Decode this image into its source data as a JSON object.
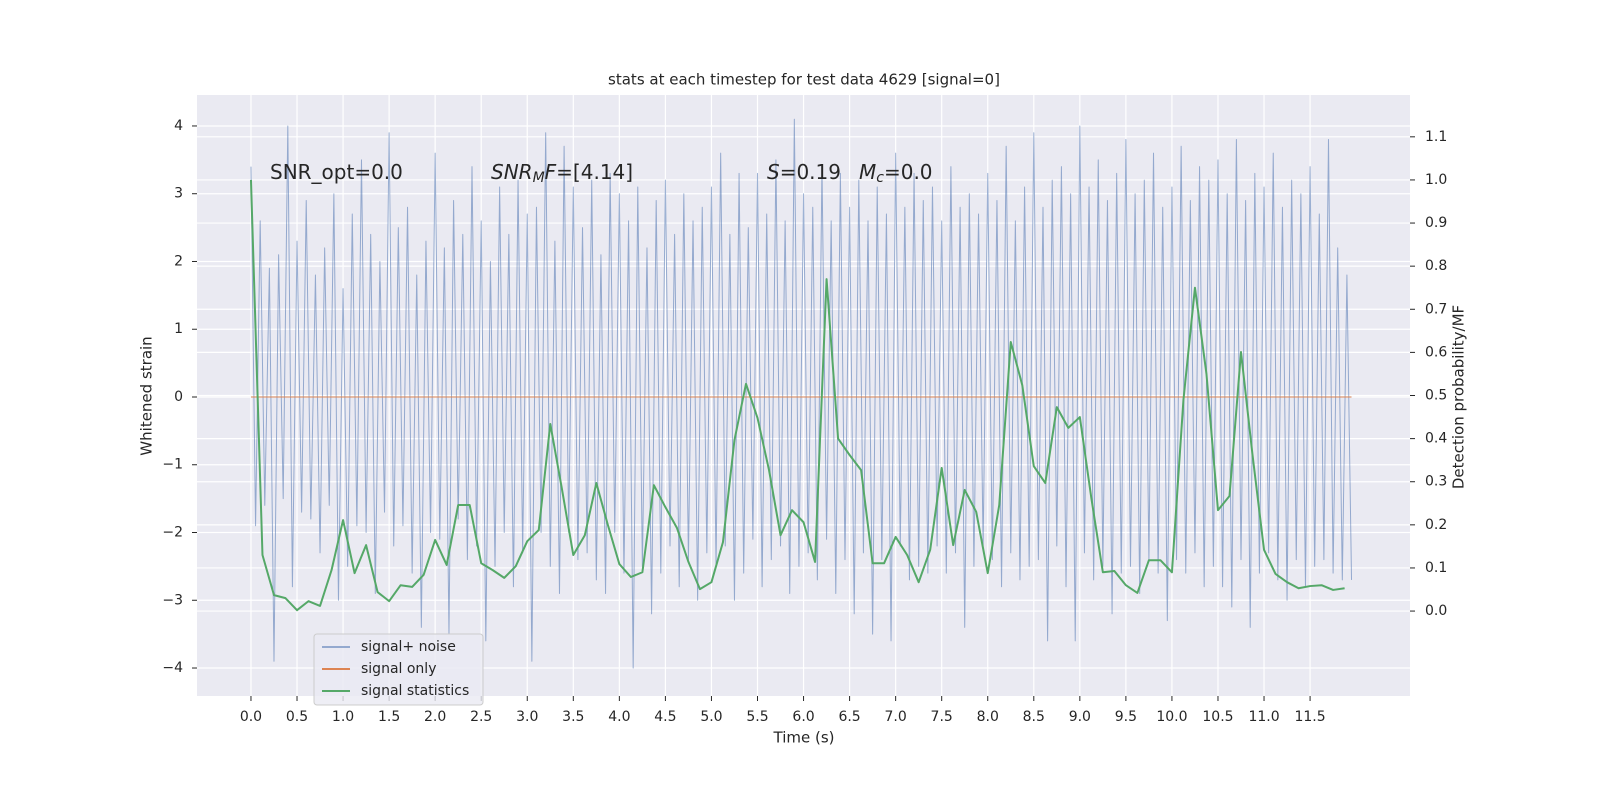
{
  "chart_data": {
    "type": "line",
    "title": "stats at each timestep for test data 4629 [signal=0]",
    "xlabel": "Time (s)",
    "ylabel": "Whitened strain",
    "y2label": "Detection probability/MF",
    "xlim": [
      -0.586,
      12.585
    ],
    "ylim": [
      -4.413,
      4.457
    ],
    "y2lim": [
      -0.197,
      1.197
    ],
    "xticks": [
      {
        "value": 0,
        "label": "0.0"
      },
      {
        "value": 0.5,
        "label": "0.5"
      },
      {
        "value": 1,
        "label": "1.0"
      },
      {
        "value": 1.5,
        "label": "1.5"
      },
      {
        "value": 2,
        "label": "2.0"
      },
      {
        "value": 2.5,
        "label": "2.5"
      },
      {
        "value": 3,
        "label": "3.0"
      },
      {
        "value": 3.5,
        "label": "3.5"
      },
      {
        "value": 4,
        "label": "4.0"
      },
      {
        "value": 4.5,
        "label": "4.5"
      },
      {
        "value": 5,
        "label": "5.0"
      },
      {
        "value": 5.5,
        "label": "5.5"
      },
      {
        "value": 6,
        "label": "6.0"
      },
      {
        "value": 6.5,
        "label": "6.5"
      },
      {
        "value": 7,
        "label": "7.0"
      },
      {
        "value": 7.5,
        "label": "7.5"
      },
      {
        "value": 8,
        "label": "8.0"
      },
      {
        "value": 8.5,
        "label": "8.5"
      },
      {
        "value": 9,
        "label": "9.0"
      },
      {
        "value": 9.5,
        "label": "9.5"
      },
      {
        "value": 10,
        "label": "10.0"
      },
      {
        "value": 10.5,
        "label": "10.5"
      },
      {
        "value": 11,
        "label": "11.0"
      },
      {
        "value": 11.5,
        "label": "11.5"
      }
    ],
    "yticks": [
      {
        "value": -4,
        "label": "−4"
      },
      {
        "value": -3,
        "label": "−3"
      },
      {
        "value": -2,
        "label": "−2"
      },
      {
        "value": -1,
        "label": "−1"
      },
      0,
      1,
      2,
      3,
      4
    ],
    "y2ticks": [
      {
        "value": 0,
        "label": "0.0"
      },
      {
        "value": 0.1,
        "label": "0.1"
      },
      {
        "value": 0.2,
        "label": "0.2"
      },
      {
        "value": 0.3,
        "label": "0.3"
      },
      {
        "value": 0.4,
        "label": "0.4"
      },
      {
        "value": 0.5,
        "label": "0.5"
      },
      {
        "value": 0.6,
        "label": "0.6"
      },
      {
        "value": 0.7,
        "label": "0.7"
      },
      {
        "value": 0.8,
        "label": "0.8"
      },
      {
        "value": 0.9,
        "label": "0.9"
      },
      {
        "value": 1,
        "label": "1.0"
      },
      {
        "value": 1.1,
        "label": "1.1"
      }
    ],
    "grid": true,
    "legend": "lower left",
    "annotations": [
      {
        "parts": [
          {
            "text": "SNR_opt=0.0"
          }
        ]
      },
      {
        "parts": [
          {
            "text": "SNR",
            "italic": true
          },
          {
            "text": "M",
            "italic": true,
            "sub": true
          },
          {
            "text": "F",
            "italic": true
          },
          {
            "text": "=[4.14]"
          }
        ]
      },
      {
        "parts": [
          {
            "text": "S",
            "italic": true
          },
          {
            "text": "=0.19"
          }
        ]
      },
      {
        "parts": [
          {
            "text": "M",
            "italic": true
          },
          {
            "text": "c",
            "italic": true,
            "sub": true
          },
          {
            "text": "=0.0"
          }
        ]
      }
    ],
    "series": [
      {
        "name": "signal+ noise",
        "color": "#4c72b0",
        "opacity": 0.55,
        "x": [
          0,
          0.05,
          0.1,
          0.15,
          0.2,
          0.25,
          0.3,
          0.35,
          0.4,
          0.45,
          0.5,
          0.55,
          0.6,
          0.65,
          0.7,
          0.75,
          0.8,
          0.85,
          0.9,
          0.95,
          1,
          1.05,
          1.1,
          1.15,
          1.2,
          1.25,
          1.3,
          1.35,
          1.4,
          1.45,
          1.5,
          1.55,
          1.6,
          1.65,
          1.7,
          1.75,
          1.8,
          1.85,
          1.9,
          1.95,
          2,
          2.05,
          2.1,
          2.15,
          2.2,
          2.25,
          2.3,
          2.35,
          2.4,
          2.45,
          2.5,
          2.55,
          2.6,
          2.65,
          2.7,
          2.75,
          2.8,
          2.85,
          2.9,
          2.95,
          3,
          3.05,
          3.1,
          3.15,
          3.2,
          3.25,
          3.3,
          3.35,
          3.4,
          3.45,
          3.5,
          3.55,
          3.6,
          3.65,
          3.7,
          3.75,
          3.8,
          3.85,
          3.9,
          3.95,
          4,
          4.05,
          4.1,
          4.15,
          4.2,
          4.25,
          4.3,
          4.35,
          4.4,
          4.45,
          4.5,
          4.55,
          4.6,
          4.65,
          4.7,
          4.75,
          4.8,
          4.85,
          4.9,
          4.95,
          5,
          5.05,
          5.1,
          5.15,
          5.2,
          5.25,
          5.3,
          5.35,
          5.4,
          5.45,
          5.5,
          5.55,
          5.6,
          5.65,
          5.7,
          5.75,
          5.8,
          5.85,
          5.9,
          5.95,
          6,
          6.05,
          6.1,
          6.15,
          6.2,
          6.25,
          6.3,
          6.35,
          6.4,
          6.45,
          6.5,
          6.55,
          6.6,
          6.65,
          6.7,
          6.75,
          6.8,
          6.85,
          6.9,
          6.95,
          7,
          7.05,
          7.1,
          7.15,
          7.2,
          7.25,
          7.3,
          7.35,
          7.4,
          7.45,
          7.5,
          7.55,
          7.6,
          7.65,
          7.7,
          7.75,
          7.8,
          7.85,
          7.9,
          7.95,
          8,
          8.05,
          8.1,
          8.15,
          8.2,
          8.25,
          8.3,
          8.35,
          8.4,
          8.45,
          8.5,
          8.55,
          8.6,
          8.65,
          8.7,
          8.75,
          8.8,
          8.85,
          8.9,
          8.95,
          9,
          9.05,
          9.1,
          9.15,
          9.2,
          9.25,
          9.3,
          9.35,
          9.4,
          9.45,
          9.5,
          9.55,
          9.6,
          9.65,
          9.7,
          9.75,
          9.8,
          9.85,
          9.9,
          9.95,
          10,
          10.05,
          10.1,
          10.15,
          10.2,
          10.25,
          10.3,
          10.35,
          10.4,
          10.45,
          10.5,
          10.55,
          10.6,
          10.65,
          10.7,
          10.75,
          10.8,
          10.85,
          10.9,
          10.95,
          11,
          11.05,
          11.1,
          11.15,
          11.2,
          11.25,
          11.3,
          11.35,
          11.4,
          11.45,
          11.5,
          11.55,
          11.6,
          11.65,
          11.7,
          11.75,
          11.8,
          11.85,
          11.9,
          11.95
        ],
        "values": [
          3.4,
          -1.9,
          2.6,
          -1.6,
          1.9,
          -3.9,
          2.1,
          -1.5,
          4.0,
          -2.8,
          2.3,
          -1.7,
          2.9,
          -1.8,
          1.8,
          -2.3,
          2.2,
          -1.6,
          3.0,
          -3.0,
          1.6,
          -2.5,
          2.7,
          -1.9,
          3.5,
          -2.0,
          2.4,
          -2.9,
          2.0,
          -1.7,
          3.9,
          -2.2,
          2.5,
          -1.9,
          2.8,
          -2.6,
          1.8,
          -3.4,
          2.3,
          -2.0,
          3.6,
          -2.1,
          2.2,
          -3.5,
          2.9,
          -1.8,
          2.4,
          -2.4,
          3.4,
          -2.2,
          2.6,
          -3.6,
          2.0,
          -2.5,
          3.1,
          -2.0,
          2.4,
          -2.8,
          3.2,
          -2.3,
          2.7,
          -3.9,
          2.8,
          -2.0,
          3.9,
          -2.5,
          2.3,
          -2.9,
          3.7,
          -2.0,
          3.1,
          -2.4,
          2.5,
          -2.3,
          3.2,
          -2.7,
          2.1,
          -2.9,
          3.3,
          -2.0,
          3.0,
          -2.6,
          2.6,
          -4.0,
          3.1,
          -2.5,
          2.2,
          -3.2,
          2.9,
          -2.6,
          3.2,
          -2.2,
          2.4,
          -2.8,
          3.0,
          -2.4,
          2.6,
          -3.0,
          2.8,
          -2.3,
          3.1,
          -2.5,
          3.6,
          -2.2,
          2.4,
          -3.0,
          3.3,
          -2.6,
          2.5,
          -2.1,
          3.3,
          -2.8,
          2.7,
          -2.4,
          3.5,
          -2.2,
          2.6,
          -2.9,
          4.1,
          -2.5,
          3.0,
          -2.3,
          2.8,
          -2.7,
          3.4,
          -2.1,
          2.6,
          -2.9,
          3.3,
          -2.4,
          2.8,
          -3.2,
          3.2,
          -2.3,
          2.6,
          -3.5,
          3.1,
          -2.4,
          2.7,
          -3.6,
          3.6,
          -2.2,
          2.8,
          -2.7,
          3.3,
          -2.5,
          2.9,
          -2.6,
          3.1,
          -2.2,
          2.6,
          -2.6,
          3.4,
          -2.3,
          2.8,
          -3.4,
          3.0,
          -2.5,
          2.7,
          -2.2,
          3.3,
          -2.4,
          2.9,
          -2.8,
          3.7,
          -2.3,
          2.6,
          -2.7,
          3.1,
          -2.5,
          3.9,
          -2.4,
          2.8,
          -3.6,
          3.2,
          -2.2,
          3.4,
          -2.8,
          3.0,
          -3.6,
          4.0,
          -2.3,
          3.1,
          -2.7,
          3.5,
          -2.5,
          2.9,
          -3.2,
          3.3,
          -2.6,
          3.8,
          -2.5,
          3.0,
          -2.9,
          3.2,
          -2.4,
          3.6,
          -2.6,
          2.8,
          -3.3,
          3.1,
          -2.4,
          3.7,
          -2.6,
          2.9,
          -2.3,
          3.4,
          -2.8,
          3.2,
          -2.5,
          3.5,
          -2.8,
          3.0,
          -3.1,
          3.8,
          -2.4,
          2.9,
          -3.4,
          3.3,
          -2.6,
          3.1,
          -2.3,
          3.6,
          -2.7,
          2.8,
          -3.0,
          3.2,
          -2.4,
          3.0,
          -2.8,
          3.4,
          -2.5,
          2.7,
          -2.4,
          3.8,
          -2.6,
          2.2,
          -2.7,
          1.8,
          -2.7
        ]
      },
      {
        "name": "signal only",
        "color": "#dd8452",
        "opacity": 1,
        "x": [
          0,
          11.95
        ],
        "values": [
          0,
          0
        ]
      },
      {
        "name": "signal statistics",
        "color": "#55a868",
        "opacity": 1,
        "axis": "y2",
        "x": [
          0,
          0.125,
          0.25,
          0.375,
          0.5,
          0.625,
          0.75,
          0.875,
          1,
          1.125,
          1.25,
          1.375,
          1.5,
          1.625,
          1.75,
          1.875,
          2,
          2.125,
          2.25,
          2.375,
          2.5,
          2.625,
          2.75,
          2.875,
          3,
          3.125,
          3.25,
          3.375,
          3.5,
          3.625,
          3.75,
          3.875,
          4,
          4.125,
          4.25,
          4.375,
          4.5,
          4.625,
          4.75,
          4.875,
          5,
          5.125,
          5.25,
          5.375,
          5.5,
          5.625,
          5.75,
          5.875,
          6,
          6.125,
          6.25,
          6.375,
          6.5,
          6.625,
          6.75,
          6.875,
          7,
          7.125,
          7.25,
          7.375,
          7.5,
          7.625,
          7.75,
          7.875,
          8,
          8.125,
          8.25,
          8.375,
          8.5,
          8.625,
          8.75,
          8.875,
          9,
          9.125,
          9.25,
          9.375,
          9.5,
          9.625,
          9.75,
          9.875,
          10,
          10.125,
          10.25,
          10.375,
          10.5,
          10.625,
          10.75,
          10.875,
          11,
          11.125,
          11.25,
          11.375,
          11.5,
          11.625,
          11.75,
          11.875
        ],
        "values": [
          1.0,
          0.13,
          0.037,
          0.03,
          0.002,
          0.023,
          0.012,
          0.095,
          0.211,
          0.088,
          0.153,
          0.044,
          0.023,
          0.06,
          0.056,
          0.084,
          0.165,
          0.107,
          0.246,
          0.246,
          0.111,
          0.095,
          0.077,
          0.104,
          0.162,
          0.188,
          0.434,
          0.285,
          0.13,
          0.176,
          0.297,
          0.2,
          0.109,
          0.079,
          0.09,
          0.292,
          0.241,
          0.193,
          0.114,
          0.051,
          0.067,
          0.16,
          0.397,
          0.527,
          0.448,
          0.327,
          0.176,
          0.234,
          0.206,
          0.114,
          0.77,
          0.4,
          0.362,
          0.327,
          0.111,
          0.111,
          0.172,
          0.13,
          0.067,
          0.142,
          0.332,
          0.153,
          0.281,
          0.23,
          0.088,
          0.246,
          0.624,
          0.524,
          0.336,
          0.297,
          0.473,
          0.425,
          0.45,
          0.262,
          0.09,
          0.093,
          0.06,
          0.042,
          0.118,
          0.118,
          0.09,
          0.49,
          0.75,
          0.55,
          0.234,
          0.267,
          0.601,
          0.362,
          0.142,
          0.086,
          0.067,
          0.053,
          0.058,
          0.06,
          0.049,
          0.053
        ]
      }
    ]
  }
}
